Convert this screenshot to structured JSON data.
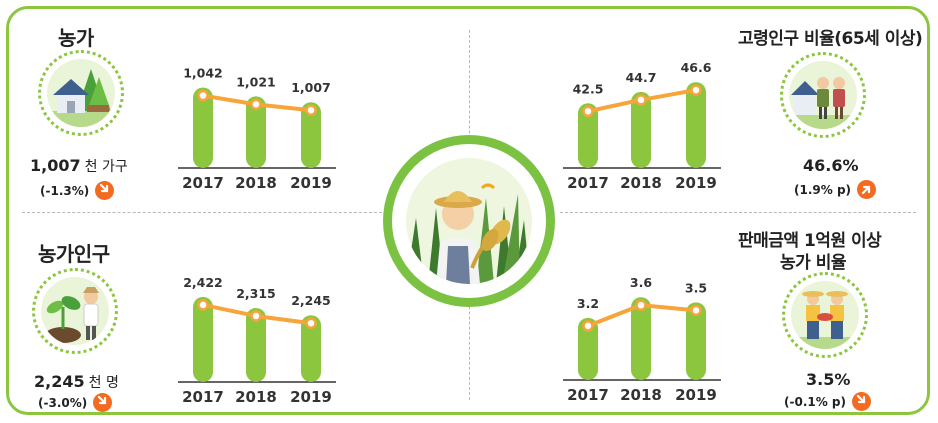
{
  "panels": {
    "households": {
      "title": "농가",
      "value": "1,007",
      "unit": "천 가구",
      "change": "(-1.3%)",
      "change_direction": "down",
      "icon": "farmhouse-icon"
    },
    "population": {
      "title": "농가인구",
      "value": "2,245",
      "unit": "천 명",
      "change": "(-3.0%)",
      "change_direction": "down",
      "icon": "farmer-planting-icon"
    },
    "elderly": {
      "title": "고령인구 비율(65세 이상)",
      "value": "46.6%",
      "change": "(1.9% p)",
      "change_direction": "up",
      "icon": "elderly-couple-icon"
    },
    "sales": {
      "title_line1": "판매금액 1억원 이상",
      "title_line2": "농가 비율",
      "value": "3.5%",
      "change": "(-0.1% p)",
      "change_direction": "down",
      "icon": "farmers-with-produce-icon"
    },
    "center": {
      "icon": "farmer-with-rice-icon"
    }
  },
  "colors": {
    "bar": "#8cc63f",
    "line": "#f7a43b",
    "frame": "#8cc63f",
    "badge": "#f26b21"
  },
  "chart_data": [
    {
      "id": "households",
      "type": "bar",
      "categories": [
        "2017",
        "2018",
        "2019"
      ],
      "values": [
        1042,
        1021,
        1007
      ],
      "labels": [
        "1,042",
        "1,021",
        "1,007"
      ],
      "ylim": [
        850,
        1060
      ]
    },
    {
      "id": "population",
      "type": "bar",
      "categories": [
        "2017",
        "2018",
        "2019"
      ],
      "values": [
        2422,
        2315,
        2245
      ],
      "labels": [
        "2,422",
        "2,315",
        "2,245"
      ],
      "ylim": [
        1600,
        2450
      ]
    },
    {
      "id": "elderly",
      "type": "bar",
      "categories": [
        "2017",
        "2018",
        "2019"
      ],
      "values": [
        42.5,
        44.7,
        46.6
      ],
      "labels": [
        "42.5",
        "44.7",
        "46.6"
      ],
      "ylim": [
        30,
        47
      ]
    },
    {
      "id": "sales",
      "type": "bar",
      "categories": [
        "2017",
        "2018",
        "2019"
      ],
      "values": [
        3.2,
        3.6,
        3.5
      ],
      "labels": [
        "3.2",
        "3.6",
        "3.5"
      ],
      "ylim": [
        2.0,
        3.7
      ]
    }
  ]
}
